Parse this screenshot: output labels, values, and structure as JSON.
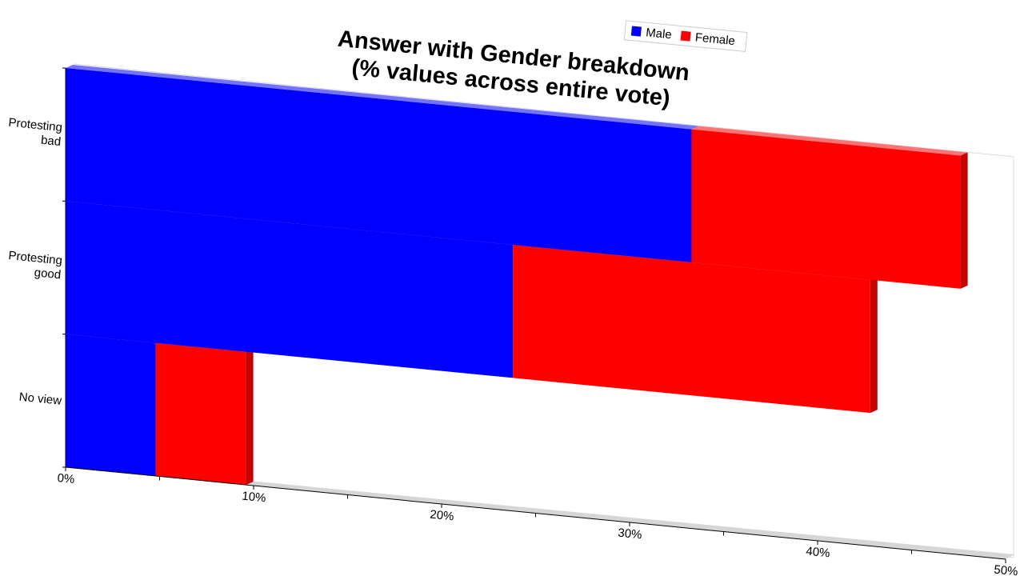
{
  "chart_data": {
    "type": "bar",
    "orientation": "horizontal",
    "stacked": true,
    "three_d": true,
    "title": "Answer with Gender breakdown\n(% values across entire vote)",
    "categories": [
      "Protesting bad",
      "Protesting good",
      "No view"
    ],
    "category_labels": [
      [
        "Protesting",
        "bad"
      ],
      [
        "Protesting",
        "good"
      ],
      [
        "No view"
      ]
    ],
    "series": [
      {
        "name": "Male",
        "color": "#0000ff",
        "values": [
          33.3,
          23.8,
          4.8
        ]
      },
      {
        "name": "Female",
        "color": "#ff0000",
        "values": [
          14.3,
          19.0,
          4.8
        ]
      }
    ],
    "x_ticks": [
      "0%",
      "10%",
      "20%",
      "30%",
      "40%",
      "50%"
    ],
    "xlim": [
      0,
      50
    ],
    "x_unit": "%",
    "legend": {
      "position": "top-right",
      "entries": [
        "Male",
        "Female"
      ]
    },
    "grid": false
  }
}
